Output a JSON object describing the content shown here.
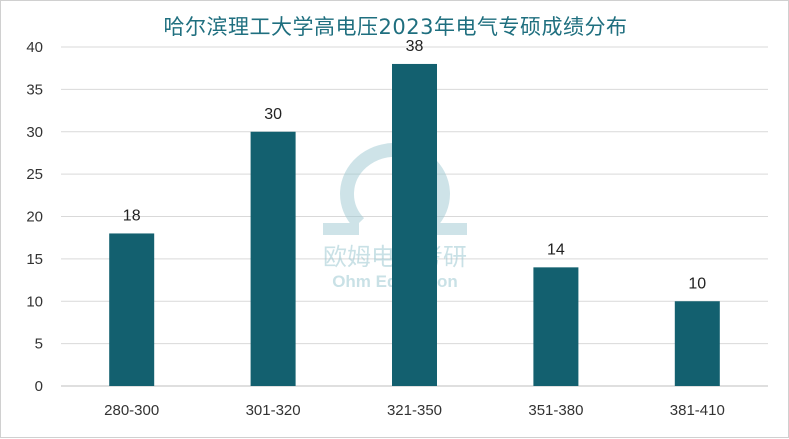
{
  "chart_data": {
    "type": "bar",
    "title": "哈尔滨理工大学高电压2023年电气专硕成绩分布",
    "categories": [
      "280-300",
      "301-320",
      "321-350",
      "351-380",
      "381-410"
    ],
    "values": [
      18,
      30,
      38,
      14,
      10
    ],
    "ylim": [
      0,
      40
    ],
    "yticks": [
      0,
      5,
      10,
      15,
      20,
      25,
      30,
      35,
      40
    ],
    "xlabel": "",
    "ylabel": "",
    "grid": true,
    "legend": "none",
    "bar_color": "#13606f"
  },
  "watermark": {
    "text_cn": "欧姆电气考研",
    "text_en": "Ohm Education",
    "color": "#9ec9d2"
  }
}
